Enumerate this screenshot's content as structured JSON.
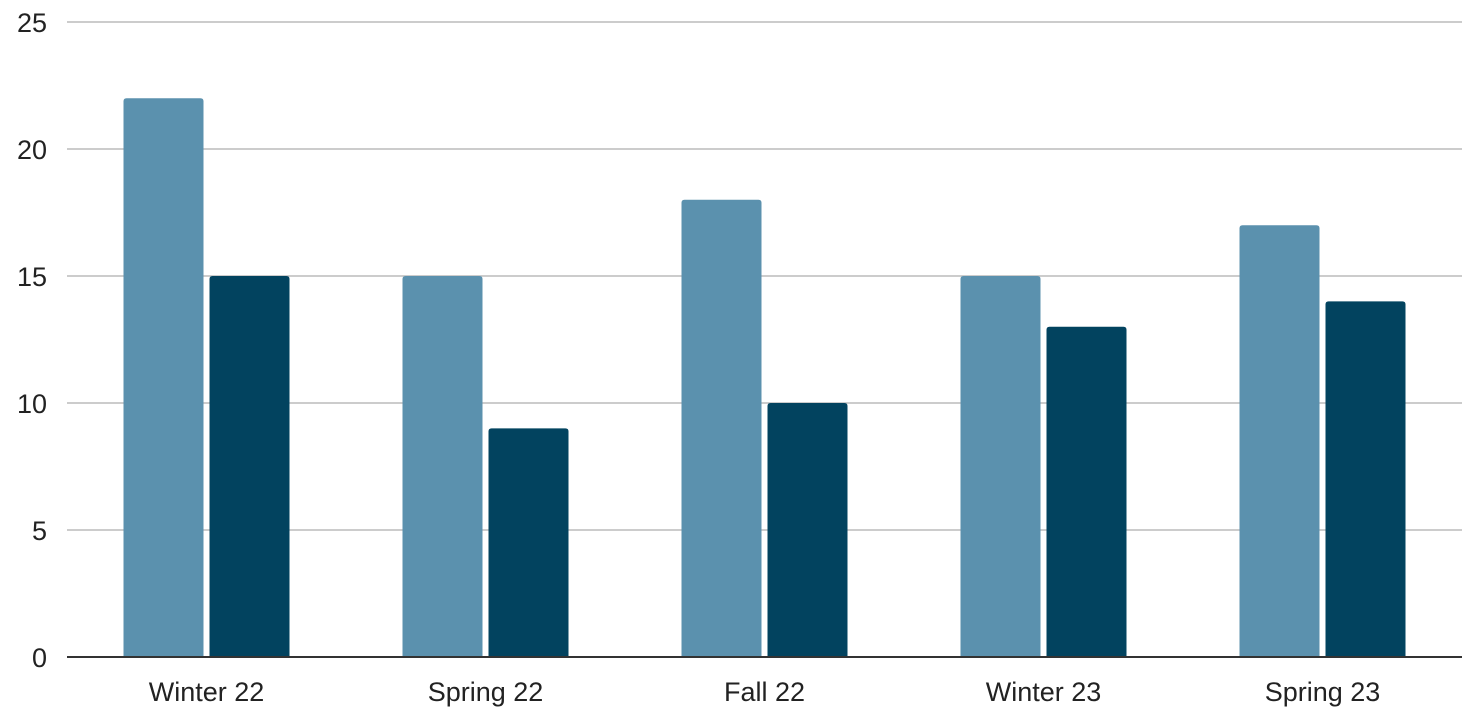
{
  "chart_data": {
    "type": "bar",
    "title": "",
    "xlabel": "",
    "ylabel": "",
    "categories": [
      "Winter 22",
      "Spring 22",
      "Fall 22",
      "Winter 23",
      "Spring 23"
    ],
    "series": [
      {
        "values": [
          22,
          15,
          18,
          15,
          17
        ],
        "color": "#5b91ae"
      },
      {
        "values": [
          15,
          9,
          10,
          13,
          14
        ],
        "color": "#02435f"
      }
    ],
    "ylim": [
      0,
      25
    ],
    "yticks": [
      0,
      5,
      10,
      15,
      20,
      25
    ],
    "grid": true,
    "legend": "none"
  }
}
